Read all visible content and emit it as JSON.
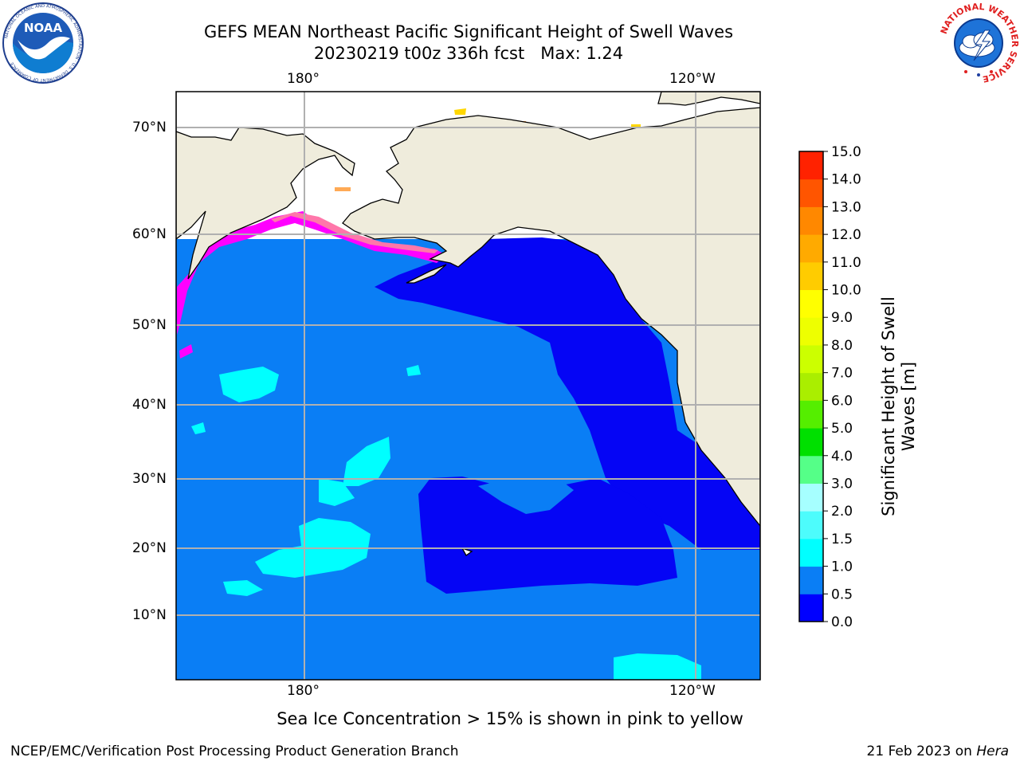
{
  "header": {
    "title_line1": "GEFS MEAN Northeast Pacific Significant Height of Swell Waves",
    "title_line2": "20230219 t00z 336h fcst   Max: 1.24"
  },
  "logos": {
    "left": {
      "icon": "noaa-logo-icon",
      "text": "NOAA",
      "ring_text": "NATIONAL OCEANIC AND ATMOSPHERIC ADMINISTRATION · U.S. DEPARTMENT OF COMMERCE"
    },
    "right": {
      "icon": "nws-logo-icon",
      "ring_text": "NATIONAL WEATHER SERVICE"
    }
  },
  "map": {
    "lon_ticks_top": [
      "180°",
      "120°W"
    ],
    "lon_ticks_bottom": [
      "180°",
      "120°W"
    ],
    "lat_ticks": [
      "70°N",
      "60°N",
      "50°N",
      "40°N",
      "30°N",
      "20°N",
      "10°N"
    ],
    "colors": {
      "land": "#efecdc",
      "ocean_05_10": "#0a7ef5",
      "ocean_00_05": "#0505f5",
      "swell_10_15": "#00ffff",
      "sea_ice_low": "#ff00ff",
      "sea_ice_mid": "#ff77aa",
      "sea_ice_high": "#ffd700",
      "grid": "#b0b0b0"
    }
  },
  "colorbar": {
    "label": "Significant Height of Swell Waves [m]",
    "tick_labels": [
      "0.0",
      "0.5",
      "1.0",
      "1.5",
      "2.0",
      "3.0",
      "4.0",
      "5.0",
      "6.0",
      "7.0",
      "8.0",
      "9.0",
      "10.0",
      "11.0",
      "12.0",
      "13.0",
      "14.0",
      "15.0"
    ],
    "colors": [
      "#0000ff",
      "#0a7ef5",
      "#00ffff",
      "#4dfcfc",
      "#a6ffff",
      "#55ff88",
      "#00e000",
      "#55ee00",
      "#aaee00",
      "#ccff00",
      "#eeff00",
      "#ffff00",
      "#ffcc00",
      "#ffaa00",
      "#ff8800",
      "#ff5500",
      "#ff2200",
      "#ff0000"
    ]
  },
  "notes": {
    "sea_ice": "Sea Ice Concentration > 15% is shown in pink to yellow"
  },
  "footer": {
    "left": "NCEP/EMC/Verification Post Processing Product Generation Branch",
    "right_date": "21 Feb 2023 on",
    "right_host": "Hera"
  }
}
